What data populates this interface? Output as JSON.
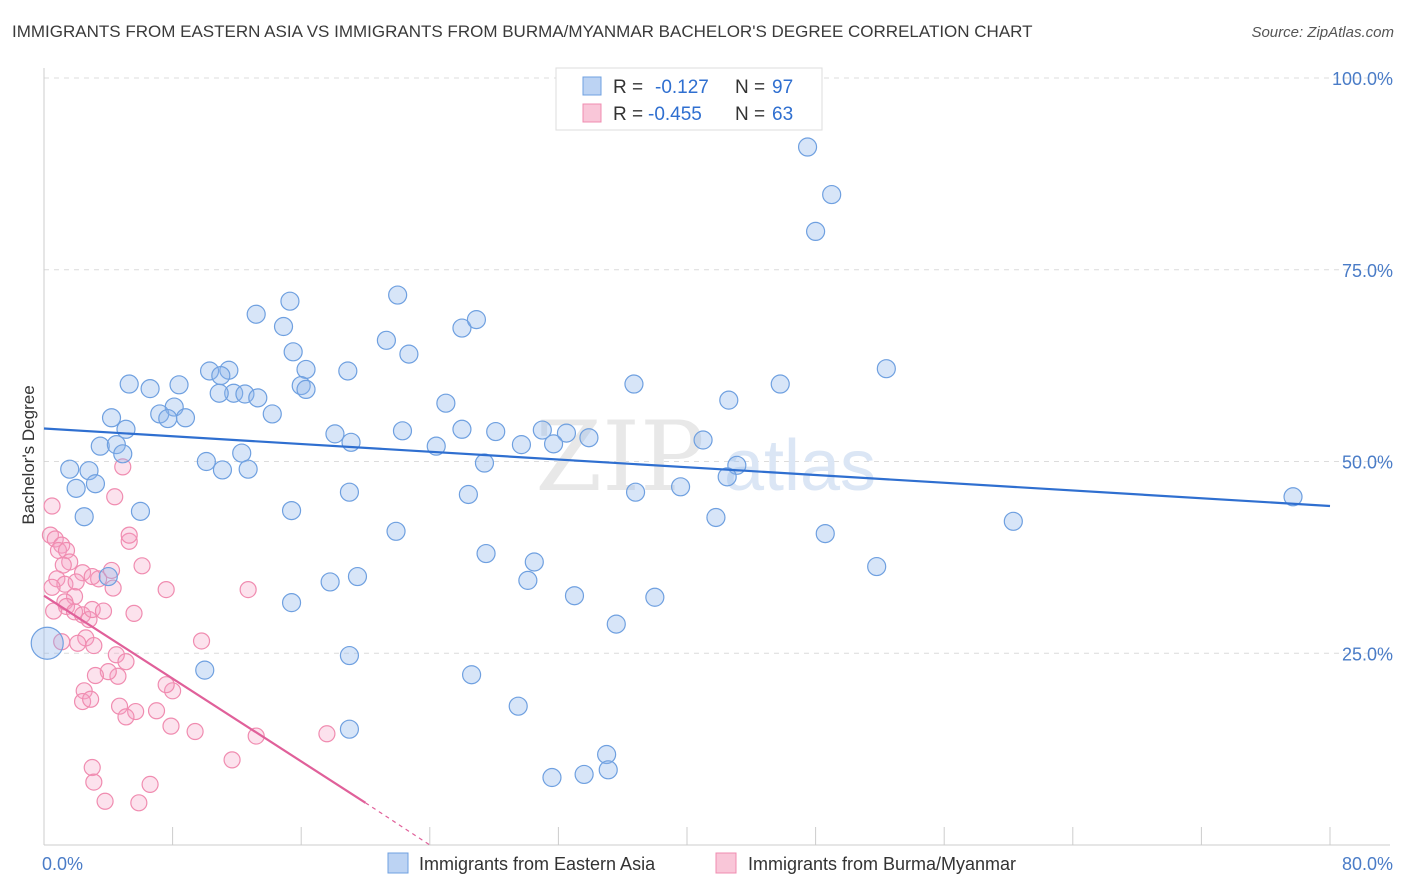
{
  "header": {
    "title": "IMMIGRANTS FROM EASTERN ASIA VS IMMIGRANTS FROM BURMA/MYANMAR BACHELOR'S DEGREE CORRELATION CHART",
    "source": "Source: ZipAtlas.com"
  },
  "watermark": {
    "zip": "ZIP",
    "atlas": "atlas"
  },
  "chart_data": {
    "type": "scatter",
    "title": "IMMIGRANTS FROM EASTERN ASIA VS IMMIGRANTS FROM BURMA/MYANMAR BACHELOR'S DEGREE CORRELATION CHART",
    "xlabel": "",
    "ylabel": "Bachelor's Degree",
    "xlim": [
      0,
      80
    ],
    "ylim": [
      0,
      100
    ],
    "x_tick_labels": [
      "0.0%",
      "80.0%"
    ],
    "y_ticks": [
      25,
      50,
      75,
      100
    ],
    "y_tick_labels": [
      "25.0%",
      "50.0%",
      "75.0%",
      "100.0%"
    ],
    "grid": true,
    "legend_position": "top-center",
    "colors": {
      "eastern_asia": "#6fa0e0",
      "burma": "#f08cb0",
      "eastern_asia_line": "#2f6fd0",
      "burma_line": "#e0609a"
    },
    "stats": [
      {
        "r_label": "R =",
        "r_value": "-0.127",
        "n_label": "N =",
        "n_value": "97"
      },
      {
        "r_label": "R =",
        "r_value": "-0.455",
        "n_label": "N =",
        "n_value": "63"
      }
    ],
    "series": [
      {
        "name": "Immigrants from Eastern Asia",
        "trend": {
          "x0": 0,
          "y0": 54.3,
          "x1": 80,
          "y1": 44.2
        },
        "points": [
          [
            47.5,
            91.0
          ],
          [
            49.0,
            84.8
          ],
          [
            48.0,
            80.0
          ],
          [
            22.0,
            71.7
          ],
          [
            15.3,
            70.9
          ],
          [
            13.2,
            69.2
          ],
          [
            14.9,
            67.6
          ],
          [
            26.0,
            67.4
          ],
          [
            26.9,
            68.5
          ],
          [
            21.3,
            65.8
          ],
          [
            15.5,
            64.3
          ],
          [
            22.7,
            64.0
          ],
          [
            52.4,
            62.1
          ],
          [
            11.5,
            61.9
          ],
          [
            10.3,
            61.8
          ],
          [
            16.3,
            62.0
          ],
          [
            18.9,
            61.8
          ],
          [
            11.0,
            61.2
          ],
          [
            5.3,
            60.1
          ],
          [
            8.4,
            60.0
          ],
          [
            16.0,
            59.9
          ],
          [
            6.6,
            59.5
          ],
          [
            16.3,
            59.4
          ],
          [
            11.8,
            58.9
          ],
          [
            10.9,
            58.9
          ],
          [
            12.5,
            58.8
          ],
          [
            13.3,
            58.3
          ],
          [
            25.0,
            57.6
          ],
          [
            45.8,
            60.1
          ],
          [
            36.7,
            60.1
          ],
          [
            8.1,
            57.1
          ],
          [
            42.6,
            58.0
          ],
          [
            7.2,
            56.2
          ],
          [
            4.2,
            55.7
          ],
          [
            7.7,
            55.6
          ],
          [
            8.8,
            55.7
          ],
          [
            14.2,
            56.2
          ],
          [
            5.1,
            54.2
          ],
          [
            22.3,
            54.0
          ],
          [
            26.0,
            54.2
          ],
          [
            28.1,
            53.9
          ],
          [
            31.0,
            54.1
          ],
          [
            32.5,
            53.7
          ],
          [
            33.9,
            53.1
          ],
          [
            18.1,
            53.6
          ],
          [
            19.1,
            52.5
          ],
          [
            29.7,
            52.2
          ],
          [
            3.5,
            52.0
          ],
          [
            4.5,
            52.2
          ],
          [
            31.7,
            52.3
          ],
          [
            24.4,
            52.0
          ],
          [
            41.0,
            52.8
          ],
          [
            4.9,
            51.0
          ],
          [
            12.3,
            51.1
          ],
          [
            10.1,
            50.0
          ],
          [
            12.7,
            49.0
          ],
          [
            11.1,
            48.9
          ],
          [
            27.4,
            49.8
          ],
          [
            43.1,
            49.5
          ],
          [
            42.5,
            48.0
          ],
          [
            1.6,
            49.0
          ],
          [
            2.8,
            48.8
          ],
          [
            3.2,
            47.1
          ],
          [
            2.0,
            46.5
          ],
          [
            39.6,
            46.7
          ],
          [
            19.0,
            46.0
          ],
          [
            26.4,
            45.7
          ],
          [
            36.8,
            46.0
          ],
          [
            15.4,
            43.6
          ],
          [
            6.0,
            43.5
          ],
          [
            2.5,
            42.8
          ],
          [
            41.8,
            42.7
          ],
          [
            21.9,
            40.9
          ],
          [
            27.5,
            38.0
          ],
          [
            30.5,
            36.9
          ],
          [
            4.0,
            35.0
          ],
          [
            19.5,
            35.0
          ],
          [
            17.8,
            34.3
          ],
          [
            30.1,
            34.5
          ],
          [
            33.0,
            32.5
          ],
          [
            38.0,
            32.3
          ],
          [
            15.4,
            31.6
          ],
          [
            35.6,
            28.8
          ],
          [
            19.0,
            24.7
          ],
          [
            19.0,
            15.1
          ],
          [
            10.0,
            22.8
          ],
          [
            26.6,
            22.2
          ],
          [
            29.5,
            18.1
          ],
          [
            33.6,
            9.2
          ],
          [
            35.0,
            11.8
          ],
          [
            31.6,
            8.8
          ],
          [
            35.1,
            9.8
          ],
          [
            48.6,
            40.6
          ],
          [
            60.3,
            42.2
          ],
          [
            77.7,
            45.4
          ],
          [
            51.8,
            36.3
          ],
          [
            0.2,
            26.3
          ]
        ]
      },
      {
        "name": "Immigrants from Burma/Myanmar",
        "trend": {
          "x0": 0,
          "y0": 32.5,
          "x1": 20,
          "y1": 5.5,
          "dash_to_x": 24,
          "dash_to_y": 0
        },
        "points": [
          [
            0.5,
            44.2
          ],
          [
            0.4,
            40.4
          ],
          [
            0.7,
            39.9
          ],
          [
            1.1,
            39.1
          ],
          [
            0.9,
            38.4
          ],
          [
            1.4,
            38.4
          ],
          [
            1.6,
            36.9
          ],
          [
            1.2,
            36.5
          ],
          [
            0.8,
            34.7
          ],
          [
            1.3,
            34.0
          ],
          [
            0.5,
            33.6
          ],
          [
            1.9,
            32.4
          ],
          [
            1.3,
            31.7
          ],
          [
            1.4,
            31.1
          ],
          [
            1.9,
            30.4
          ],
          [
            2.4,
            30.0
          ],
          [
            2.8,
            29.4
          ],
          [
            3.0,
            30.7
          ],
          [
            3.4,
            34.7
          ],
          [
            2.4,
            35.5
          ],
          [
            3.0,
            35.0
          ],
          [
            4.2,
            35.8
          ],
          [
            5.3,
            39.6
          ],
          [
            6.1,
            36.4
          ],
          [
            4.3,
            33.5
          ],
          [
            3.7,
            30.5
          ],
          [
            2.6,
            27.0
          ],
          [
            2.1,
            26.3
          ],
          [
            3.1,
            26.0
          ],
          [
            1.1,
            26.5
          ],
          [
            0.6,
            30.5
          ],
          [
            5.3,
            40.4
          ],
          [
            4.4,
            45.4
          ],
          [
            4.9,
            49.3
          ],
          [
            7.6,
            33.3
          ],
          [
            9.8,
            26.6
          ],
          [
            12.7,
            33.3
          ],
          [
            5.6,
            30.2
          ],
          [
            4.5,
            24.8
          ],
          [
            5.1,
            23.9
          ],
          [
            4.6,
            22.0
          ],
          [
            4.0,
            22.6
          ],
          [
            3.2,
            22.1
          ],
          [
            2.5,
            20.1
          ],
          [
            2.4,
            18.7
          ],
          [
            2.9,
            19.0
          ],
          [
            4.7,
            18.1
          ],
          [
            5.7,
            17.4
          ],
          [
            5.1,
            16.7
          ],
          [
            7.0,
            17.5
          ],
          [
            8.0,
            20.1
          ],
          [
            7.9,
            15.5
          ],
          [
            9.4,
            14.8
          ],
          [
            11.7,
            11.1
          ],
          [
            13.2,
            14.2
          ],
          [
            17.6,
            14.5
          ],
          [
            3.0,
            10.1
          ],
          [
            3.1,
            8.2
          ],
          [
            6.6,
            7.9
          ],
          [
            3.8,
            5.7
          ],
          [
            5.9,
            5.5
          ],
          [
            7.6,
            20.9
          ],
          [
            2.0,
            34.3
          ]
        ]
      }
    ]
  }
}
